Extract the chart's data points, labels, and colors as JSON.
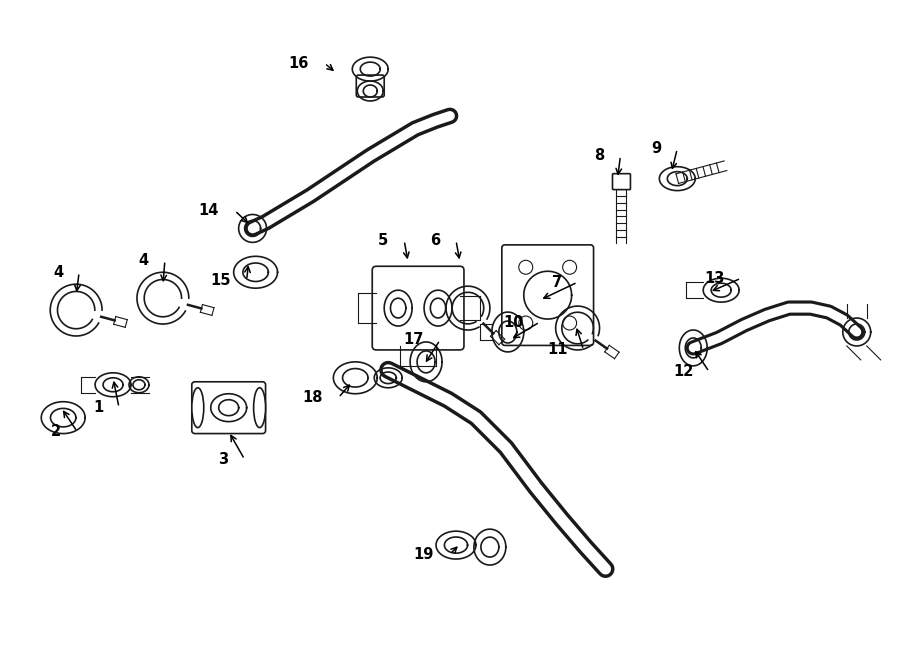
{
  "bg": "#ffffff",
  "lc": "#1a1a1a",
  "fig_w": 9.0,
  "fig_h": 6.62,
  "dpi": 100,
  "labels": [
    [
      "1",
      102,
      408,
      112,
      378
    ],
    [
      "2",
      60,
      432,
      60,
      408
    ],
    [
      "3",
      228,
      460,
      228,
      432
    ],
    [
      "4",
      62,
      272,
      75,
      295
    ],
    [
      "4",
      148,
      260,
      162,
      285
    ],
    [
      "5",
      388,
      240,
      408,
      262
    ],
    [
      "6",
      440,
      240,
      460,
      262
    ],
    [
      "7",
      562,
      282,
      540,
      300
    ],
    [
      "8",
      605,
      155,
      618,
      178
    ],
    [
      "9",
      662,
      148,
      672,
      172
    ],
    [
      "10",
      524,
      322,
      510,
      340
    ],
    [
      "11",
      568,
      350,
      576,
      325
    ],
    [
      "12",
      694,
      372,
      694,
      348
    ],
    [
      "13",
      726,
      278,
      710,
      292
    ],
    [
      "14",
      218,
      210,
      250,
      225
    ],
    [
      "15",
      230,
      280,
      248,
      262
    ],
    [
      "16",
      308,
      62,
      336,
      72
    ],
    [
      "17",
      424,
      340,
      424,
      365
    ],
    [
      "18",
      322,
      398,
      352,
      382
    ],
    [
      "19",
      434,
      555,
      460,
      545
    ]
  ]
}
